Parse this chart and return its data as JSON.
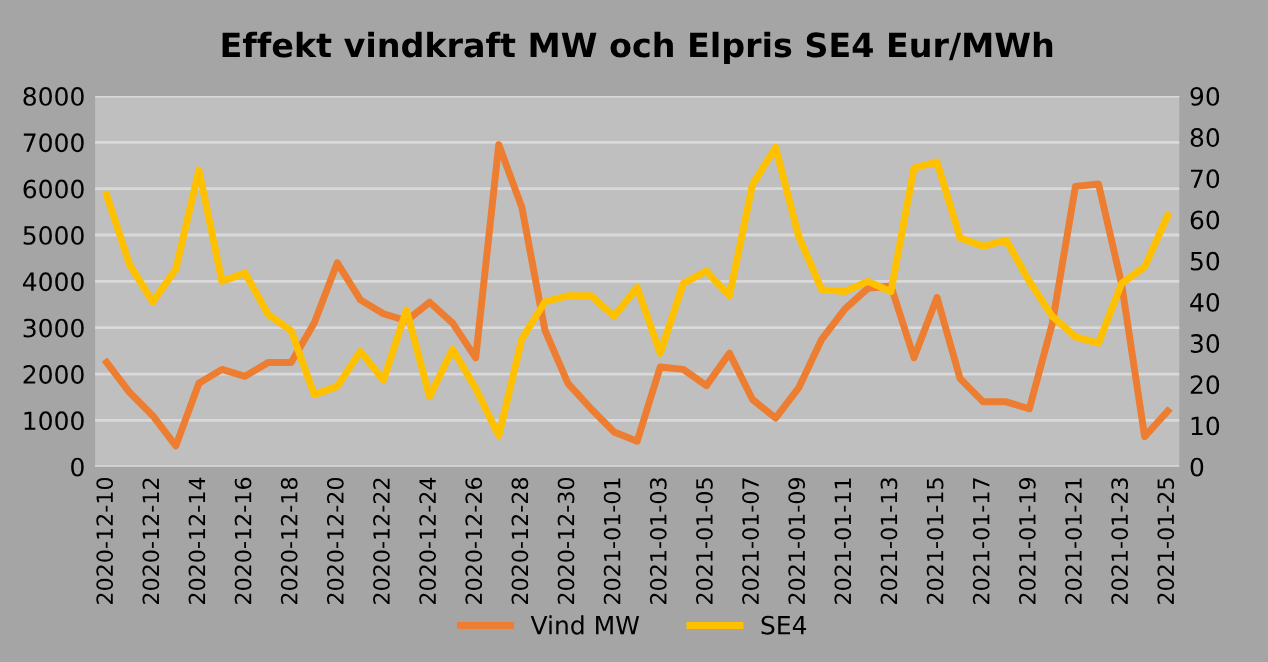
{
  "chart_data": {
    "type": "line",
    "title": "Effekt vindkraft MW och Elpris SE4 Eur/MWh",
    "categories": [
      "2020-12-10",
      null,
      "2020-12-12",
      null,
      "2020-12-14",
      null,
      "2020-12-16",
      null,
      "2020-12-18",
      null,
      "2020-12-20",
      null,
      "2020-12-22",
      null,
      "2020-12-24",
      null,
      "2020-12-26",
      null,
      "2020-12-28",
      null,
      "2020-12-30",
      null,
      "2021-01-01",
      null,
      "2021-01-03",
      null,
      "2021-01-05",
      null,
      "2021-01-07",
      null,
      "2021-01-09",
      null,
      "2021-01-11",
      null,
      "2021-01-13",
      null,
      "2021-01-15",
      null,
      "2021-01-17",
      null,
      "2021-01-19",
      null,
      "2021-01-21",
      null,
      "2021-01-23",
      null,
      "2021-01-25"
    ],
    "series": [
      {
        "name": "Vind MW",
        "color": "#ed7d31",
        "values": [
          2250,
          1600,
          1100,
          450,
          1800,
          2100,
          1950,
          2250,
          2250,
          3100,
          4400,
          3600,
          3300,
          3150,
          3550,
          3100,
          2350,
          6950,
          5600,
          2950,
          1800,
          1250,
          750,
          550,
          2150,
          2100,
          1750,
          2450,
          1450,
          1050,
          1700,
          2750,
          3400,
          3850,
          3900,
          2350,
          3650,
          1900,
          1400,
          1400,
          1250,
          3100,
          6050,
          6100,
          3950,
          650,
          1200
        ]
      },
      {
        "name": "SE4",
        "color": "#ffc000",
        "axis": "y2",
        "values": [
          66,
          49,
          40,
          48,
          72,
          45,
          47,
          37,
          33,
          17.5,
          19.5,
          28,
          21,
          38,
          17,
          28.5,
          19,
          7.5,
          31,
          40,
          41.5,
          41.5,
          36.5,
          43.5,
          27.5,
          44.5,
          47.5,
          41.5,
          68.5,
          77.5,
          56,
          43,
          42.5,
          45,
          42.5,
          72.5,
          74,
          55.5,
          53.5,
          55,
          45,
          36.5,
          31.5,
          30,
          44.5,
          48.5,
          61
        ]
      }
    ],
    "ylim": [
      0,
      8000
    ],
    "yticks": [
      0,
      1000,
      2000,
      3000,
      4000,
      5000,
      6000,
      7000,
      8000
    ],
    "y2lim": [
      0,
      90
    ],
    "y2ticks": [
      0,
      10,
      20,
      30,
      40,
      50,
      60,
      70,
      80,
      90
    ],
    "grid": "y",
    "legend": "bottom",
    "marker": "none",
    "line_style": "solid"
  }
}
